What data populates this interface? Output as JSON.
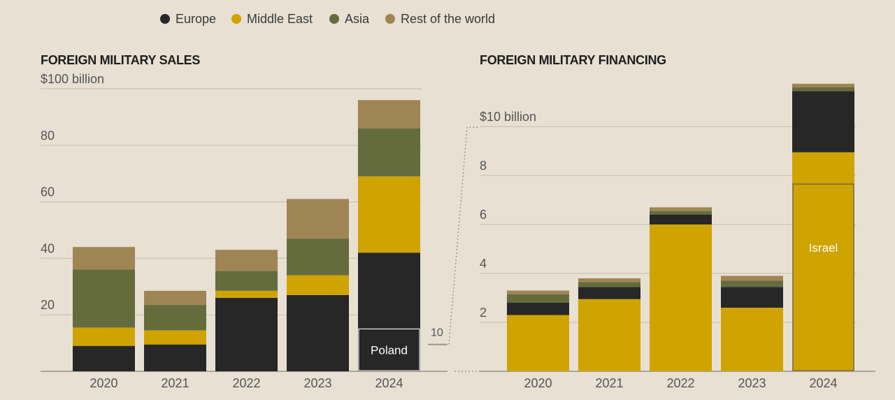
{
  "colors": {
    "Europe": "#272727",
    "Middle East": "#cfa300",
    "Asia": "#646c3d",
    "Rest of the world": "#9e8553",
    "grid": "#cbc4b6",
    "axis": "#9a9488",
    "background": "#e7e0d3"
  },
  "legend": [
    "Europe",
    "Middle East",
    "Asia",
    "Rest of the world"
  ],
  "chart_data": [
    {
      "type": "bar",
      "stacked": true,
      "title": "FOREIGN MILITARY SALES",
      "unit_label": "$100 billion",
      "categories": [
        "2020",
        "2021",
        "2022",
        "2023",
        "2024"
      ],
      "ylim": [
        0,
        100
      ],
      "yticks": [
        20,
        40,
        60,
        80,
        100
      ],
      "series": [
        {
          "name": "Europe",
          "values": [
            9,
            9.5,
            26,
            27,
            42
          ]
        },
        {
          "name": "Middle East",
          "values": [
            6.5,
            5,
            2.5,
            7,
            27
          ]
        },
        {
          "name": "Asia",
          "values": [
            20.5,
            9,
            7,
            13,
            17
          ]
        },
        {
          "name": "Rest of the world",
          "values": [
            8,
            5,
            7.5,
            14,
            10
          ]
        }
      ],
      "annotation": {
        "label": "Poland",
        "category": "2024",
        "value": 15,
        "series": "Europe"
      },
      "zoom_marker": {
        "label": "10",
        "value": 10
      }
    },
    {
      "type": "bar",
      "stacked": true,
      "title": "FOREIGN MILITARY FINANCING",
      "unit_label": "$10 billion",
      "categories": [
        "2020",
        "2021",
        "2022",
        "2023",
        "2024"
      ],
      "ylim": [
        0,
        11.7
      ],
      "yticks": [
        2,
        4,
        6,
        8,
        10
      ],
      "series": [
        {
          "name": "Middle East",
          "values": [
            2.3,
            2.95,
            6.0,
            2.6,
            8.95
          ]
        },
        {
          "name": "Europe",
          "values": [
            0.5,
            0.5,
            0.4,
            0.85,
            2.5
          ]
        },
        {
          "name": "Asia",
          "values": [
            0.35,
            0.2,
            0.15,
            0.25,
            0.15
          ]
        },
        {
          "name": "Rest of the world",
          "values": [
            0.15,
            0.15,
            0.15,
            0.2,
            0.15
          ]
        }
      ],
      "annotation": {
        "label": "Israel",
        "category": "2024",
        "value": 7.65,
        "series": "Middle East"
      }
    }
  ]
}
